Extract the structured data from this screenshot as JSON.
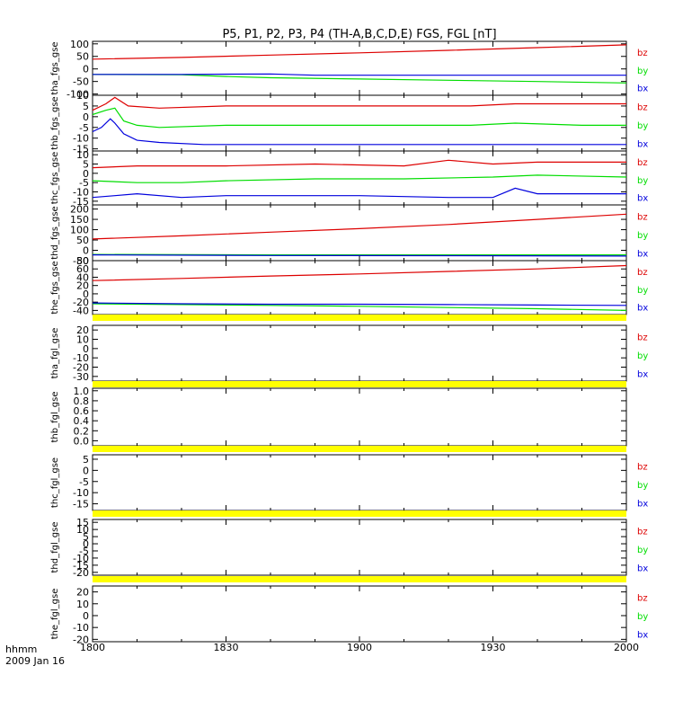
{
  "title": "P5, P1, P2, P3, P4 (TH-A,B,C,D,E) FGS, FGL [nT]",
  "time_axis": {
    "label_line1": "hhmm",
    "label_line2": "2009 Jan 16",
    "ticks": [
      "1800",
      "1830",
      "1900",
      "1930",
      "2000"
    ],
    "tick_minutes": [
      0,
      30,
      60,
      90,
      120
    ],
    "range_minutes": [
      0,
      120
    ]
  },
  "colors": {
    "bz": "#dd0000",
    "by": "#00dd00",
    "bx": "#0000dd",
    "flag_bar": "#ffff00"
  },
  "chart_data": [
    {
      "type": "line",
      "ylabel": "tha_fgs_gse",
      "ylim": [
        -105,
        110
      ],
      "yticks": [
        100,
        50,
        0,
        -50,
        -100
      ],
      "legend": [
        "bz",
        "by",
        "bx"
      ],
      "series": [
        {
          "name": "bz",
          "x": [
            0,
            20,
            40,
            60,
            80,
            100,
            120
          ],
          "values": [
            39,
            46,
            55,
            64,
            74,
            85,
            96
          ]
        },
        {
          "name": "by",
          "x": [
            0,
            20,
            30,
            40,
            60,
            80,
            100,
            120
          ],
          "values": [
            -22,
            -23,
            -30,
            -35,
            -40,
            -45,
            -50,
            -56
          ]
        },
        {
          "name": "bx",
          "x": [
            0,
            20,
            40,
            50,
            60,
            80,
            100,
            120
          ],
          "values": [
            -22,
            -22,
            -20,
            -25,
            -25,
            -25,
            -25,
            -25
          ]
        }
      ]
    },
    {
      "type": "line",
      "ylabel": "thb_fgs_gse",
      "ylim": [
        -16,
        10
      ],
      "yticks": [
        10,
        5,
        0,
        -5,
        -10,
        -15
      ],
      "legend": [
        "bz",
        "by",
        "bx"
      ],
      "series": [
        {
          "name": "bz",
          "x": [
            0,
            3,
            5,
            8,
            15,
            30,
            50,
            70,
            85,
            95,
            110,
            120
          ],
          "values": [
            3,
            6,
            9,
            5,
            4,
            5,
            5,
            5,
            5,
            6,
            6,
            6
          ]
        },
        {
          "name": "by",
          "x": [
            0,
            3,
            5,
            7,
            10,
            15,
            30,
            50,
            70,
            85,
            95,
            110,
            120
          ],
          "values": [
            1,
            3,
            4,
            -2,
            -4,
            -5,
            -4,
            -4,
            -4,
            -4,
            -3,
            -4,
            -4
          ]
        },
        {
          "name": "bx",
          "x": [
            0,
            2,
            4,
            5,
            7,
            10,
            15,
            25,
            40,
            60,
            80,
            95,
            110,
            120
          ],
          "values": [
            -7,
            -5,
            -1,
            -3,
            -8,
            -11,
            -12,
            -13,
            -13,
            -13,
            -13,
            -13,
            -13,
            -13
          ]
        }
      ]
    },
    {
      "type": "line",
      "ylabel": "thc_fgs_gse",
      "ylim": [
        -17,
        12
      ],
      "yticks": [
        10,
        5,
        0,
        -5,
        -10,
        -15
      ],
      "legend": [
        "bz",
        "by",
        "bx"
      ],
      "series": [
        {
          "name": "bz",
          "x": [
            0,
            10,
            30,
            50,
            70,
            80,
            90,
            100,
            120
          ],
          "values": [
            3,
            4,
            4,
            5,
            4,
            7,
            5,
            6,
            6
          ]
        },
        {
          "name": "by",
          "x": [
            0,
            10,
            20,
            30,
            50,
            70,
            90,
            100,
            120
          ],
          "values": [
            -4,
            -5,
            -5,
            -4,
            -3,
            -3,
            -2,
            -1,
            -2
          ]
        },
        {
          "name": "bx",
          "x": [
            0,
            5,
            10,
            20,
            30,
            40,
            60,
            80,
            90,
            95,
            100,
            120
          ],
          "values": [
            -13,
            -12,
            -11,
            -13,
            -12,
            -12,
            -12,
            -13,
            -13,
            -8,
            -11,
            -11
          ]
        }
      ]
    },
    {
      "type": "line",
      "ylabel": "thd_fgs_gse",
      "ylim": [
        -50,
        220
      ],
      "yticks": [
        200,
        150,
        100,
        50,
        0,
        -50
      ],
      "legend": [
        "bz",
        "by",
        "bx"
      ],
      "series": [
        {
          "name": "bz",
          "x": [
            0,
            20,
            40,
            60,
            80,
            100,
            120
          ],
          "values": [
            55,
            70,
            88,
            105,
            125,
            150,
            175
          ]
        },
        {
          "name": "by",
          "x": [
            0,
            40,
            80,
            120
          ],
          "values": [
            -20,
            -22,
            -22,
            -22
          ]
        },
        {
          "name": "bx",
          "x": [
            0,
            40,
            80,
            120
          ],
          "values": [
            -22,
            -25,
            -26,
            -28
          ]
        }
      ]
    },
    {
      "type": "line",
      "ylabel": "the_fgs_gse",
      "ylim": [
        -50,
        80
      ],
      "yticks": [
        80,
        60,
        40,
        20,
        0,
        -20,
        -40
      ],
      "legend": [
        "bz",
        "by",
        "bx"
      ],
      "series": [
        {
          "name": "bz",
          "x": [
            0,
            20,
            40,
            60,
            80,
            100,
            120
          ],
          "values": [
            32,
            37,
            43,
            48,
            54,
            60,
            68
          ]
        },
        {
          "name": "by",
          "x": [
            0,
            20,
            40,
            60,
            80,
            100,
            120
          ],
          "values": [
            -24,
            -26,
            -28,
            -30,
            -33,
            -36,
            -40
          ]
        },
        {
          "name": "bx",
          "x": [
            0,
            20,
            40,
            60,
            80,
            100,
            120
          ],
          "values": [
            -22,
            -24,
            -25,
            -25,
            -26,
            -27,
            -28
          ]
        }
      ]
    },
    {
      "type": "line",
      "ylabel": "tha_fgl_gse",
      "ylim": [
        -35,
        25
      ],
      "yticks": [
        20,
        10,
        0,
        -10,
        -20,
        -30
      ],
      "legend": [
        "bz",
        "by",
        "bx"
      ],
      "series": []
    },
    {
      "type": "line",
      "ylabel": "thb_fgl_gse",
      "ylim": [
        -0.1,
        1.05
      ],
      "yticks": [
        1.0,
        0.8,
        0.6,
        0.4,
        0.2,
        0.0
      ],
      "legend": [],
      "series": []
    },
    {
      "type": "line",
      "ylabel": "thc_fgl_gse",
      "ylim": [
        -18,
        7
      ],
      "yticks": [
        5,
        0,
        -5,
        -10,
        -15
      ],
      "legend": [
        "bz",
        "by",
        "bx"
      ],
      "series": []
    },
    {
      "type": "line",
      "ylabel": "thd_fgl_gse",
      "ylim": [
        -22,
        17
      ],
      "yticks": [
        15,
        10,
        5,
        0,
        -5,
        -10,
        -15,
        -20
      ],
      "legend": [
        "bz",
        "by",
        "bx"
      ],
      "series": []
    },
    {
      "type": "line",
      "ylabel": "the_fgl_gse",
      "ylim": [
        -22,
        25
      ],
      "yticks": [
        20,
        10,
        0,
        -10,
        -20
      ],
      "legend": [
        "bz",
        "by",
        "bx"
      ],
      "series": []
    }
  ]
}
